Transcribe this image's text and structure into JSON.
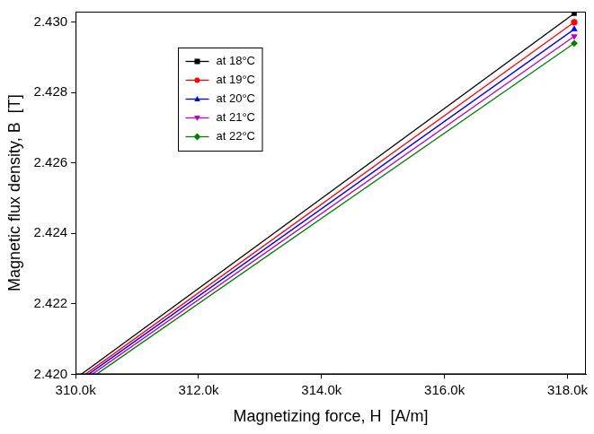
{
  "chart_data": {
    "type": "line",
    "x_label": "Magnetizing force, H  [A/m]",
    "y_label": "Magnetic flux density, B  [T]",
    "xlim": [
      310000,
      318300
    ],
    "ylim": [
      2.42,
      2.4303
    ],
    "xticks": [
      {
        "value": 310000,
        "label": "310.0k"
      },
      {
        "value": 312000,
        "label": "312.0k"
      },
      {
        "value": 314000,
        "label": "314.0k"
      },
      {
        "value": 316000,
        "label": "316.0k"
      },
      {
        "value": 318000,
        "label": "318.0k"
      }
    ],
    "yticks": [
      {
        "value": 2.42,
        "label": "2.420"
      },
      2.422,
      2.424,
      2.426,
      2.428,
      {
        "value": 2.43,
        "label": "2.430"
      }
    ],
    "grid": false,
    "legend": "upper left",
    "series": [
      {
        "name": "at 18°C",
        "color": "#000000",
        "marker": "square",
        "x": [
          310090,
          318110
        ],
        "values": [
          2.42,
          2.43025
        ]
      },
      {
        "name": "at 19°C",
        "color": "#ff0000",
        "marker": "circle",
        "x": [
          310160,
          318110
        ],
        "values": [
          2.42,
          2.43
        ]
      },
      {
        "name": "at 20°C",
        "color": "#0000ff",
        "marker": "triangle",
        "x": [
          310210,
          318110
        ],
        "values": [
          2.42,
          2.4298
        ]
      },
      {
        "name": "at 21°C",
        "color": "#bf00bf",
        "marker": "triangle_down",
        "x": [
          310270,
          318110
        ],
        "values": [
          2.42,
          2.4296
        ]
      },
      {
        "name": "at 22°C",
        "color": "#008000",
        "marker": "diamond",
        "x": [
          310340,
          318110
        ],
        "values": [
          2.42,
          2.4294
        ]
      }
    ]
  }
}
